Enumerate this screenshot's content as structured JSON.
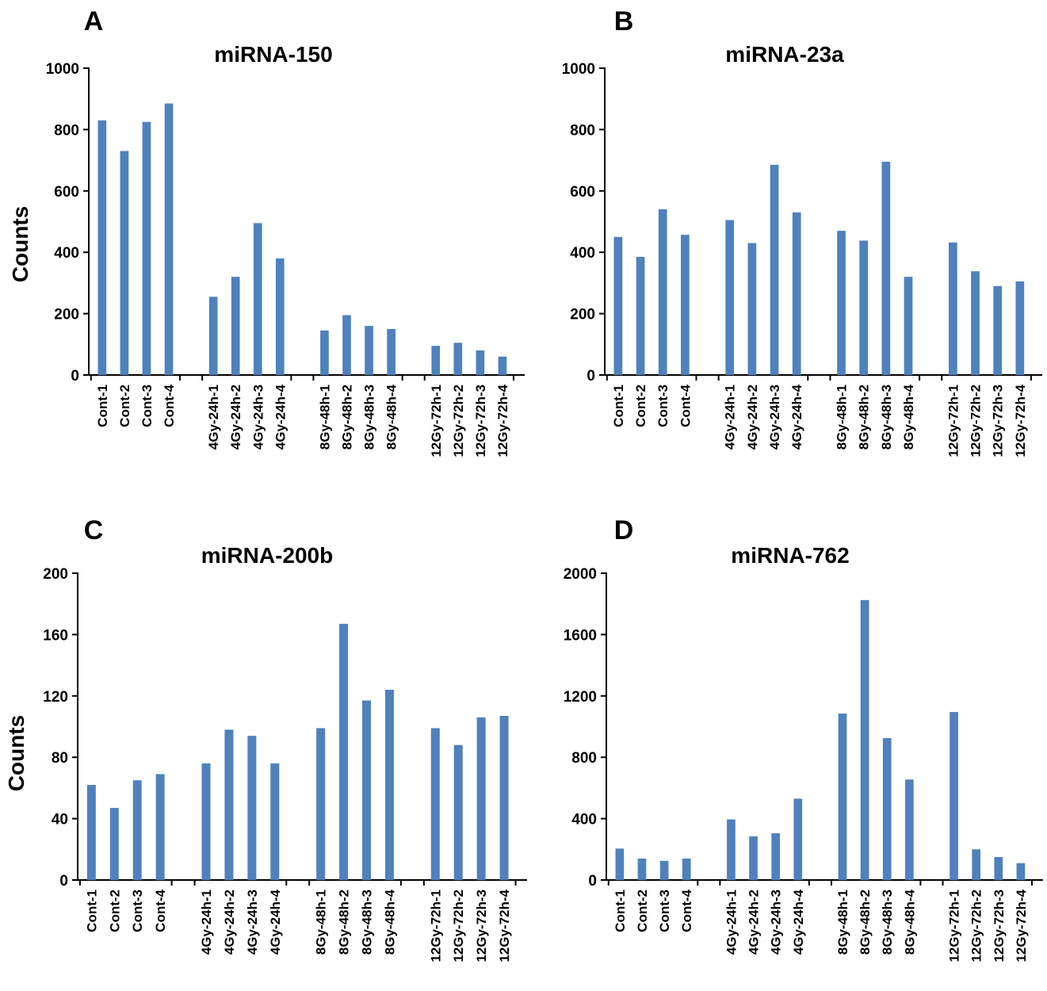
{
  "panels": [
    {
      "letter": "A",
      "chart_data": {
        "type": "bar",
        "title": "miRNA-150",
        "ylabel": "Counts",
        "xlabel": "",
        "ylim": [
          0,
          1000
        ],
        "yticks": [
          0,
          200,
          400,
          600,
          800,
          1000
        ],
        "categories": [
          "Cont-1",
          "Cont-2",
          "Cont-3",
          "Cont-4",
          "4Gy-24h-1",
          "4Gy-24h-2",
          "4Gy-24h-3",
          "4Gy-24h-4",
          "8Gy-48h-1",
          "8Gy-48h-2",
          "8Gy-48h-3",
          "8Gy-48h-4",
          "12Gy-72h-1",
          "12Gy-72h-2",
          "12Gy-72h-3",
          "12Gy-72h-4"
        ],
        "values": [
          830,
          730,
          825,
          885,
          255,
          320,
          495,
          380,
          145,
          195,
          160,
          150,
          95,
          105,
          80,
          60
        ],
        "color": "#4f81bd"
      }
    },
    {
      "letter": "B",
      "chart_data": {
        "type": "bar",
        "title": "miRNA-23a",
        "ylabel": "",
        "xlabel": "",
        "ylim": [
          0,
          1000
        ],
        "yticks": [
          0,
          200,
          400,
          600,
          800,
          1000
        ],
        "categories": [
          "Cont-1",
          "Cont-2",
          "Cont-3",
          "Cont-4",
          "4Gy-24h-1",
          "4Gy-24h-2",
          "4Gy-24h-3",
          "4Gy-24h-4",
          "8Gy-48h-1",
          "8Gy-48h-2",
          "8Gy-48h-3",
          "8Gy-48h-4",
          "12Gy-72h-1",
          "12Gy-72h-2",
          "12Gy-72h-3",
          "12Gy-72h-4"
        ],
        "values": [
          450,
          385,
          540,
          457,
          505,
          430,
          685,
          530,
          470,
          438,
          695,
          320,
          432,
          338,
          290,
          305
        ],
        "color": "#4f81bd"
      }
    },
    {
      "letter": "C",
      "chart_data": {
        "type": "bar",
        "title": "miRNA-200b",
        "ylabel": "Counts",
        "xlabel": "",
        "ylim": [
          0,
          200
        ],
        "yticks": [
          0,
          40,
          80,
          120,
          160,
          200
        ],
        "categories": [
          "Cont-1",
          "Cont-2",
          "Cont-3",
          "Cont-4",
          "4Gy-24h-1",
          "4Gy-24h-2",
          "4Gy-24h-3",
          "4Gy-24h-4",
          "8Gy-48h-1",
          "8Gy-48h-2",
          "8Gy-48h-3",
          "8Gy-48h-4",
          "12Gy-72h-1",
          "12Gy-72h-2",
          "12Gy-72h-3",
          "12Gy-72h-4"
        ],
        "values": [
          62,
          47,
          65,
          69,
          76,
          98,
          94,
          76,
          99,
          167,
          117,
          124,
          99,
          88,
          106,
          107
        ],
        "color": "#4f81bd"
      }
    },
    {
      "letter": "D",
      "chart_data": {
        "type": "bar",
        "title": "miRNA-762",
        "ylabel": "",
        "xlabel": "",
        "ylim": [
          0,
          2000
        ],
        "yticks": [
          0,
          400,
          800,
          1200,
          1600,
          2000
        ],
        "categories": [
          "Cont-1",
          "Cont-2",
          "Cont-3",
          "Cont-4",
          "4Gy-24h-1",
          "4Gy-24h-2",
          "4Gy-24h-3",
          "4Gy-24h-4",
          "8Gy-48h-1",
          "8Gy-48h-2",
          "8Gy-48h-3",
          "8Gy-48h-4",
          "12Gy-72h-1",
          "12Gy-72h-2",
          "12Gy-72h-3",
          "12Gy-72h-4"
        ],
        "values": [
          205,
          140,
          125,
          140,
          395,
          285,
          305,
          530,
          1085,
          1825,
          925,
          655,
          1095,
          200,
          150,
          110
        ],
        "color": "#4f81bd"
      }
    }
  ]
}
